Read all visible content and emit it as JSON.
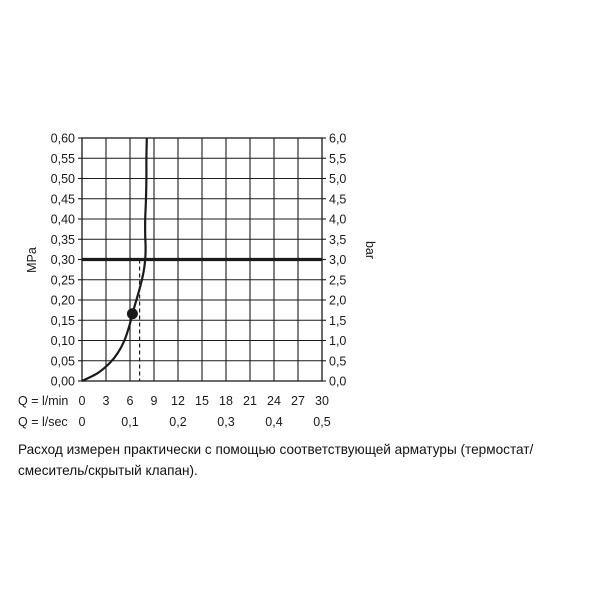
{
  "chart_data": {
    "type": "line",
    "ylabel": "MPa",
    "ylabel_right": "bar",
    "ylim": [
      0,
      0.6
    ],
    "y_ticks": [
      "0,00",
      "0,05",
      "0,10",
      "0,15",
      "0,20",
      "0,25",
      "0,30",
      "0,35",
      "0,40",
      "0,45",
      "0,50",
      "0,55",
      "0,60"
    ],
    "y_ticks_right": [
      "0,0",
      "0,5",
      "1,0",
      "1,5",
      "2,0",
      "2,5",
      "3,0",
      "3,5",
      "4,0",
      "4,5",
      "5,0",
      "5,5",
      "6,0"
    ],
    "xlim": [
      0,
      30
    ],
    "x_axis_lmin": {
      "label": "Q = l/min",
      "ticks": [
        "0",
        "3",
        "6",
        "9",
        "12",
        "15",
        "18",
        "21",
        "24",
        "27",
        "30"
      ]
    },
    "x_axis_lsec": {
      "label": "Q = l/sec",
      "ticks": [
        "0",
        "0,1",
        "0,2",
        "0,3",
        "0,4",
        "0,5"
      ]
    },
    "grid": true,
    "reference_pressure": 0.3,
    "operating_point": {
      "x": 6.3,
      "y": 0.166
    },
    "dashed_line_x": 7.2,
    "series": [
      {
        "points": [
          [
            0,
            0
          ],
          [
            2,
            0.02
          ],
          [
            3.5,
            0.045
          ],
          [
            4.5,
            0.07
          ],
          [
            5.3,
            0.1
          ],
          [
            5.9,
            0.135
          ],
          [
            6.3,
            0.166
          ],
          [
            6.8,
            0.2
          ],
          [
            7.3,
            0.235
          ],
          [
            7.7,
            0.27
          ],
          [
            7.9,
            0.3
          ],
          [
            7.95,
            0.33
          ],
          [
            7.9,
            0.36
          ],
          [
            7.9,
            0.4
          ],
          [
            8.0,
            0.45
          ],
          [
            8.05,
            0.5
          ],
          [
            8.05,
            0.55
          ],
          [
            8.1,
            0.6
          ]
        ]
      }
    ]
  },
  "caption": {
    "line1": "Расход измерен практически с помощью соответствующей арматуры (термостат/",
    "line2": "смеситель/скрытый клапан)."
  }
}
